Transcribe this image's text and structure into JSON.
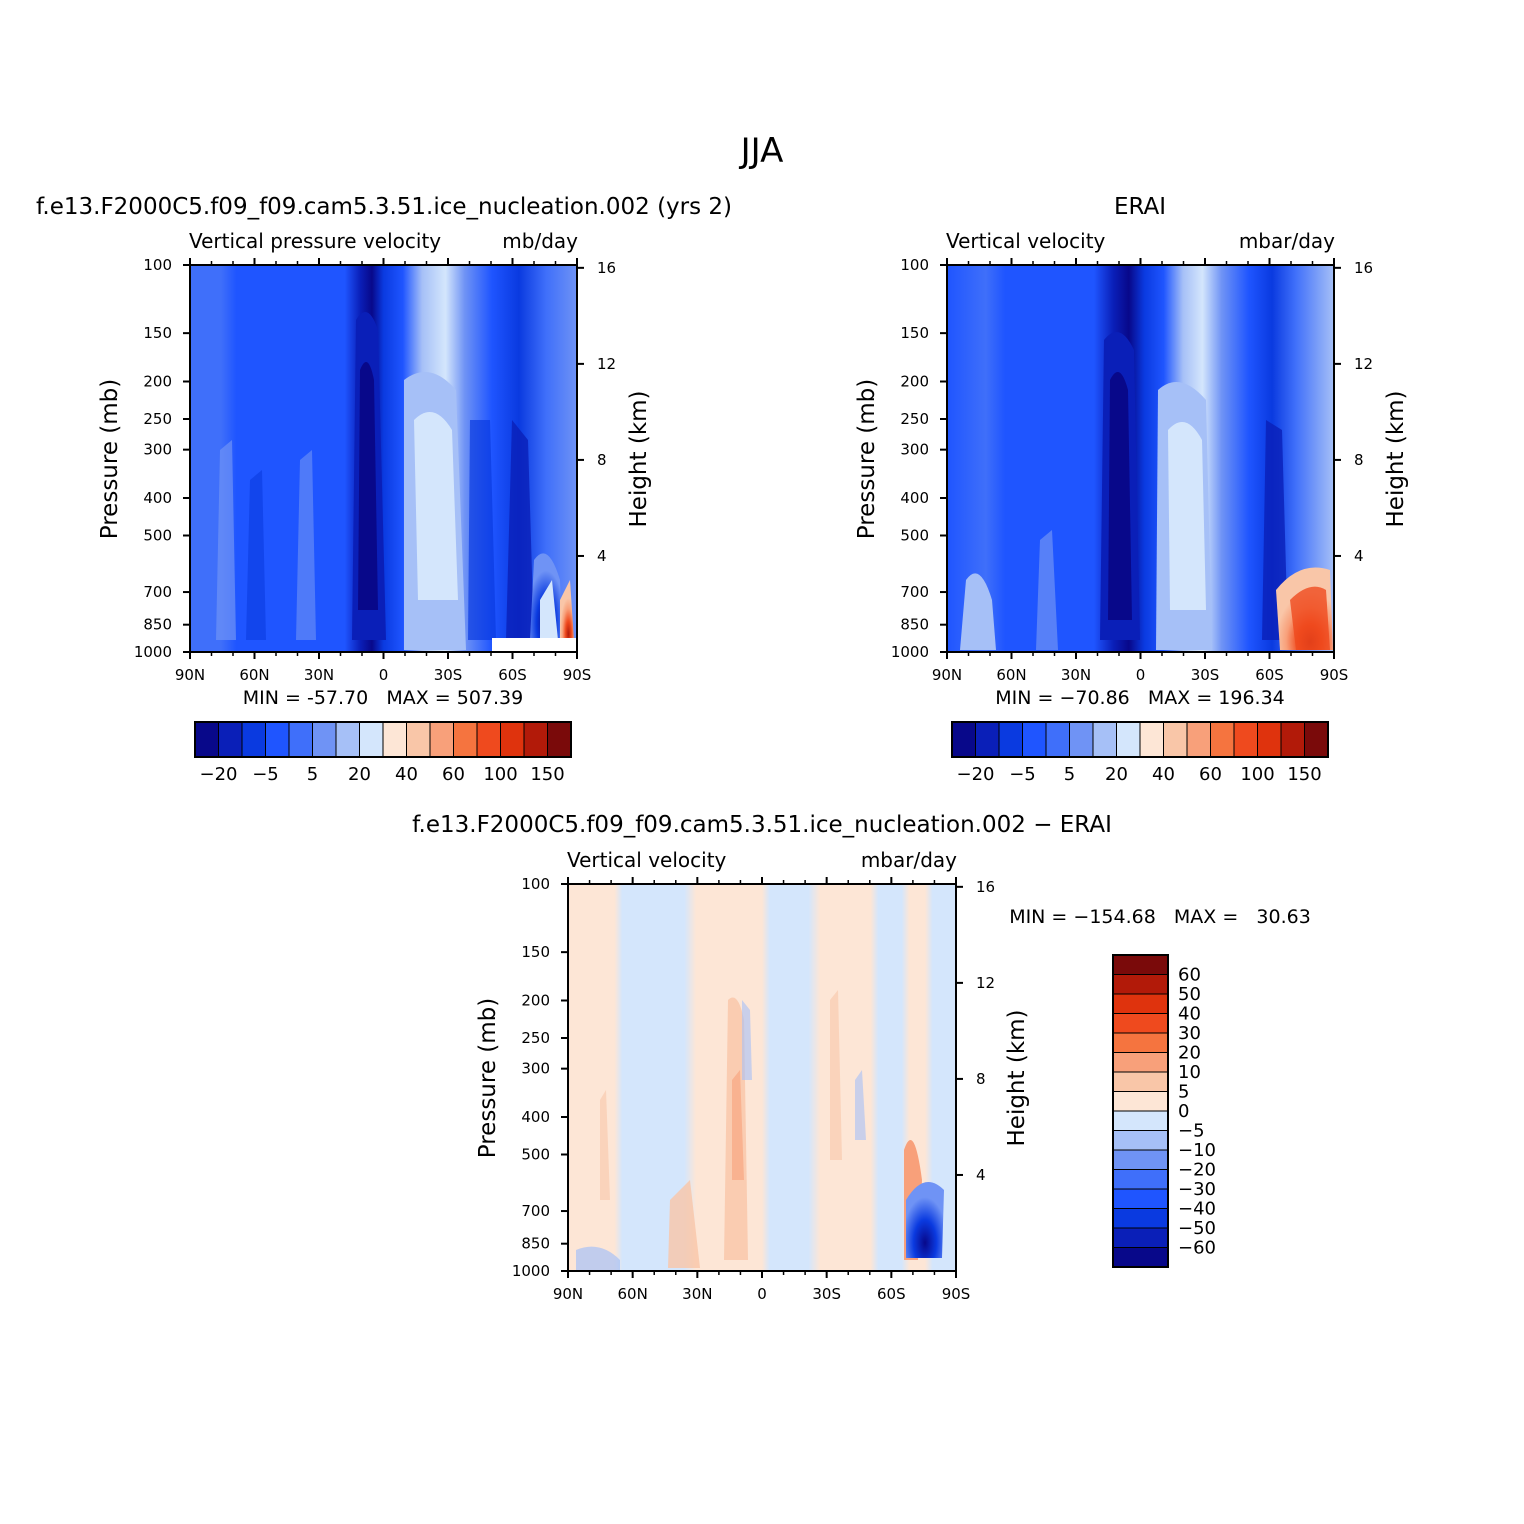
{
  "figure": {
    "title": "JJA"
  },
  "palettes": {
    "abs": [
      "#08088a",
      "#0a1fb8",
      "#0a3ae0",
      "#1f55ff",
      "#3f6ffa",
      "#6f93f5",
      "#a6c0f7",
      "#d4e6fc",
      "#fde6d6",
      "#f9c6a8",
      "#f8a07a",
      "#f5743f",
      "#ef4a1e",
      "#df330d",
      "#b21a09",
      "#7a0a0a"
    ],
    "diff": [
      "#08088a",
      "#0a1fb8",
      "#0a3ae0",
      "#1f55ff",
      "#3f6ffa",
      "#6f93f5",
      "#a6c0f7",
      "#d4e6fc",
      "#fde6d6",
      "#f9c6a8",
      "#f8a07a",
      "#f5743f",
      "#ef4a1e",
      "#df330d",
      "#b21a09",
      "#7a0a0a"
    ]
  },
  "panels": [
    {
      "header": "f.e13.F2000C5.f09_f09.cam5.3.51.ice_nucleation.002 (yrs 2)",
      "left_label": "Vertical pressure velocity",
      "right_label": "mb/day",
      "y_axis_label": "Pressure (mb)",
      "y2_axis_label": "Height (km)",
      "stats": "MIN = -57.70   MAX = 507.39",
      "colorbar_ticks": [
        "−20",
        "−5",
        "5",
        "20",
        "40",
        "60",
        "100",
        "150"
      ]
    },
    {
      "header": "ERAI",
      "left_label": "Vertical velocity",
      "right_label": "mbar/day",
      "y_axis_label": "Pressure (mb)",
      "y2_axis_label": "Height (km)",
      "stats": "MIN = −70.86   MAX = 196.34",
      "colorbar_ticks": [
        "−20",
        "−5",
        "5",
        "20",
        "40",
        "60",
        "100",
        "150"
      ]
    },
    {
      "header": "f.e13.F2000C5.f09_f09.cam5.3.51.ice_nucleation.002 − ERAI",
      "left_label": "Vertical velocity",
      "right_label": "mbar/day",
      "y_axis_label": "Pressure (mb)",
      "y2_axis_label": "Height (km)",
      "stats": "MIN = −154.68   MAX =   30.63",
      "colorbar_ticks": [
        "60",
        "50",
        "40",
        "30",
        "20",
        "10",
        "5",
        "0",
        "−5",
        "−10",
        "−20",
        "−30",
        "−40",
        "−50",
        "−60"
      ]
    }
  ],
  "chart_data": [
    {
      "type": "heatmap",
      "title": "f.e13.F2000C5.f09_f09.cam5.3.51.ice_nucleation.002 (yrs 2)",
      "subtitle": "Vertical pressure velocity",
      "units": "mb/day",
      "xlabel": "",
      "ylabel": "Pressure (mb)",
      "y2label": "Height (km)",
      "x_ticks": [
        "90N",
        "60N",
        "30N",
        "0",
        "30S",
        "60S",
        "90S"
      ],
      "y_ticks": [
        100,
        150,
        200,
        250,
        300,
        400,
        500,
        700,
        850,
        1000
      ],
      "y2_ticks": [
        4,
        8,
        12,
        16
      ],
      "y_scale": "log",
      "ylim": [
        1000,
        100
      ],
      "xlim": [
        "90N",
        "90S"
      ],
      "min": -57.7,
      "max": 507.39,
      "contour_levels": [
        -40,
        -30,
        -20,
        -10,
        -5,
        0,
        5,
        10,
        20,
        30,
        40,
        50,
        60,
        80,
        100,
        150
      ],
      "colorbar_labels": [
        "−20",
        "−5",
        "5",
        "20",
        "40",
        "60",
        "100",
        "150"
      ]
    },
    {
      "type": "heatmap",
      "title": "ERAI",
      "subtitle": "Vertical velocity",
      "units": "mbar/day",
      "xlabel": "",
      "ylabel": "Pressure (mb)",
      "y2label": "Height (km)",
      "x_ticks": [
        "90N",
        "60N",
        "30N",
        "0",
        "30S",
        "60S",
        "90S"
      ],
      "y_ticks": [
        100,
        150,
        200,
        250,
        300,
        400,
        500,
        700,
        850,
        1000
      ],
      "y2_ticks": [
        4,
        8,
        12,
        16
      ],
      "y_scale": "log",
      "ylim": [
        1000,
        100
      ],
      "xlim": [
        "90N",
        "90S"
      ],
      "min": -70.86,
      "max": 196.34,
      "contour_levels": [
        -40,
        -30,
        -20,
        -10,
        -5,
        0,
        5,
        10,
        20,
        30,
        40,
        50,
        60,
        80,
        100,
        150
      ],
      "colorbar_labels": [
        "−20",
        "−5",
        "5",
        "20",
        "40",
        "60",
        "100",
        "150"
      ]
    },
    {
      "type": "heatmap",
      "title": "f.e13.F2000C5.f09_f09.cam5.3.51.ice_nucleation.002 − ERAI",
      "subtitle": "Vertical velocity",
      "units": "mbar/day",
      "xlabel": "",
      "ylabel": "Pressure (mb)",
      "y2label": "Height (km)",
      "x_ticks": [
        "90N",
        "60N",
        "30N",
        "0",
        "30S",
        "60S",
        "90S"
      ],
      "y_ticks": [
        100,
        150,
        200,
        250,
        300,
        400,
        500,
        700,
        850,
        1000
      ],
      "y2_ticks": [
        4,
        8,
        12,
        16
      ],
      "y_scale": "log",
      "ylim": [
        1000,
        100
      ],
      "xlim": [
        "90N",
        "90S"
      ],
      "min": -154.68,
      "max": 30.63,
      "contour_levels": [
        -60,
        -50,
        -40,
        -30,
        -20,
        -10,
        -5,
        0,
        5,
        10,
        20,
        30,
        40,
        50,
        60
      ],
      "colorbar_labels": [
        "60",
        "50",
        "40",
        "30",
        "20",
        "10",
        "5",
        "0",
        "−5",
        "−10",
        "−20",
        "−30",
        "−40",
        "−50",
        "−60"
      ]
    }
  ]
}
